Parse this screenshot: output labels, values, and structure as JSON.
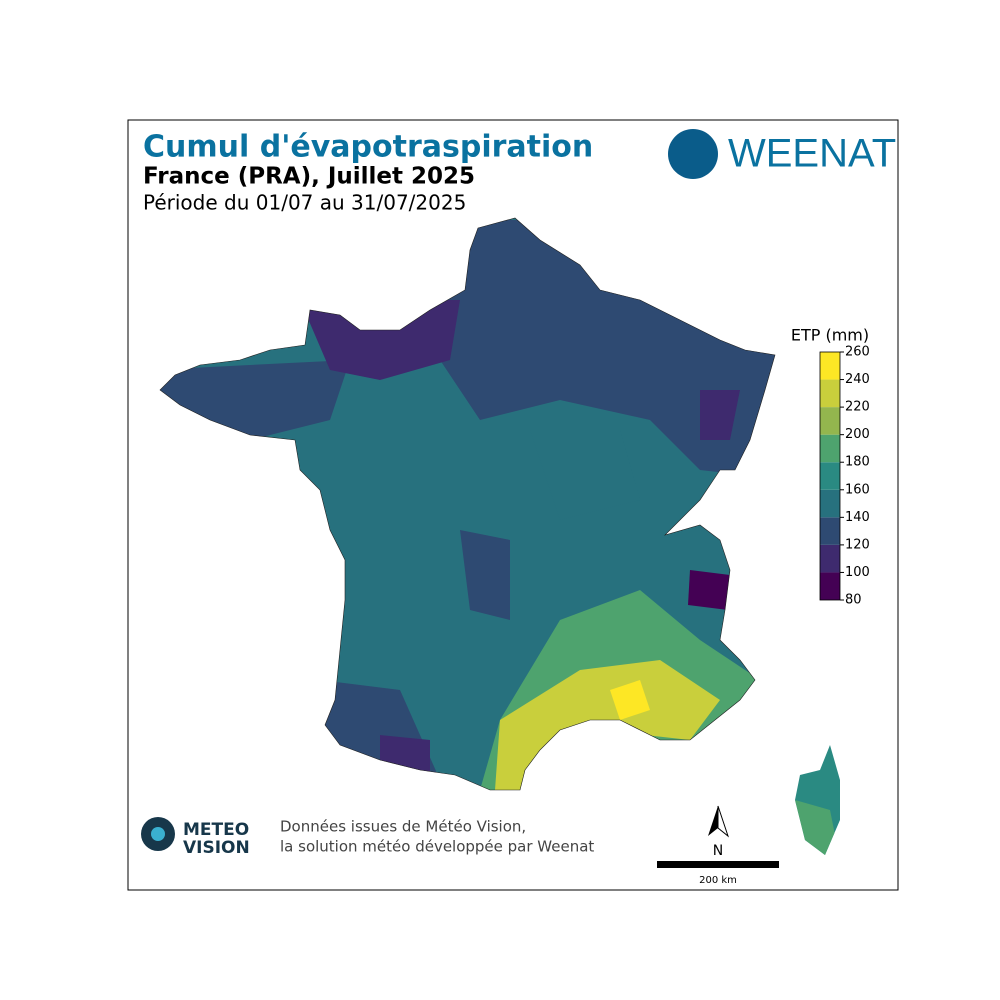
{
  "header": {
    "title": "Cumul d'évapotraspiration",
    "subtitle": "France (PRA), Juillet 2025",
    "period": "Période du 01/07 au 31/07/2025",
    "brand": "WEENAT"
  },
  "legend": {
    "title": "ETP (mm)",
    "ticks": [
      80,
      100,
      120,
      140,
      160,
      180,
      200,
      220,
      240,
      260
    ],
    "colors": [
      "#440154",
      "#3e2a6e",
      "#2e4a72",
      "#27717e",
      "#2a8a82",
      "#4ea36e",
      "#93b64e",
      "#c9cf3c",
      "#fde725"
    ]
  },
  "footer": {
    "logo_top": "METEO",
    "logo_bottom": "VISION",
    "credit_line1": "Données issues de Météo Vision,",
    "credit_line2": "la solution météo développée par Weenat",
    "north": "N",
    "scale": "200 km"
  }
}
